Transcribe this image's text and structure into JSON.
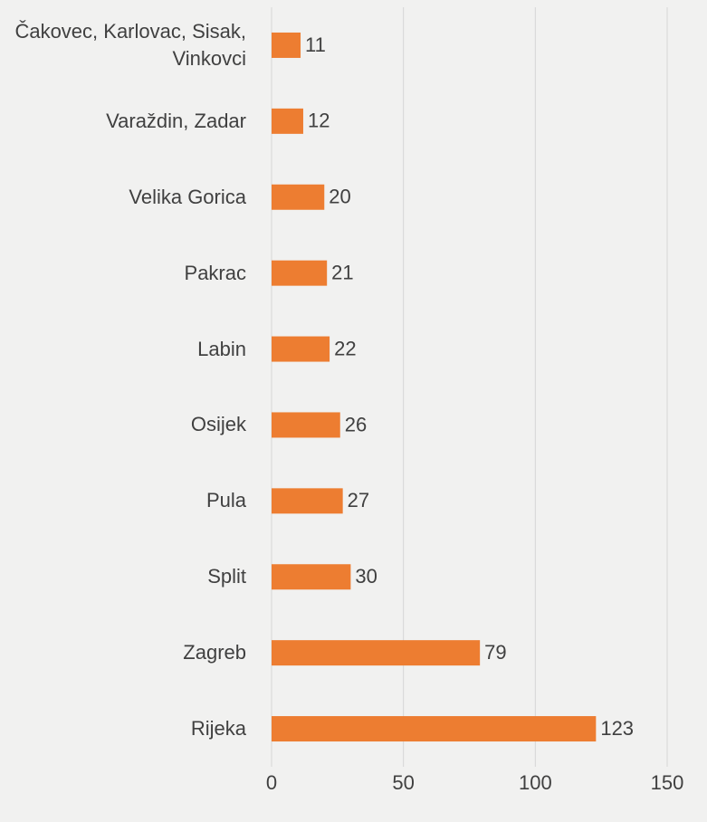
{
  "chart_data": {
    "type": "bar",
    "orientation": "horizontal",
    "categories": [
      "Čakovec, Karlovac, Sisak, Vinkovci",
      "Varaždin, Zadar",
      "Velika Gorica",
      "Pakrac",
      "Labin",
      "Osijek",
      "Pula",
      "Split",
      "Zagreb",
      "Rijeka"
    ],
    "values": [
      11,
      12,
      20,
      21,
      22,
      26,
      27,
      30,
      79,
      123
    ],
    "color": "#ed7d31",
    "xlim": [
      0,
      150
    ],
    "xticks": [
      0,
      50,
      100,
      150
    ],
    "grid": true
  }
}
